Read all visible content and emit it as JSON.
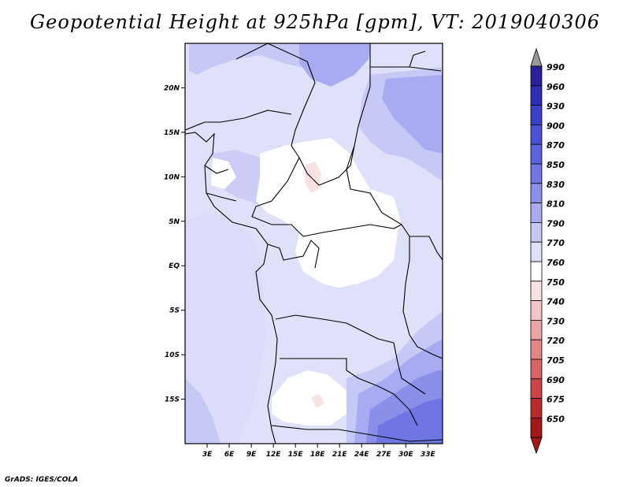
{
  "title": "Geopotential Height at 925hPa [gpm], VT: 2019040306",
  "credit": "GrADS: IGES/COLA",
  "map": {
    "lon_range": [
      0,
      35
    ],
    "lat_range": [
      -20,
      25
    ],
    "x_ticks": [
      "3E",
      "6E",
      "9E",
      "12E",
      "15E",
      "18E",
      "21E",
      "24E",
      "27E",
      "30E",
      "33E"
    ],
    "x_tick_lons": [
      3,
      6,
      9,
      12,
      15,
      18,
      21,
      24,
      27,
      30,
      33
    ],
    "y_ticks": [
      "20N",
      "15N",
      "10N",
      "5N",
      "EQ",
      "5S",
      "10S",
      "15S"
    ],
    "y_tick_lats": [
      20,
      15,
      10,
      5,
      0,
      -5,
      -10,
      -15
    ]
  },
  "colorbar": {
    "levels": [
      "990",
      "960",
      "930",
      "900",
      "870",
      "850",
      "830",
      "810",
      "790",
      "770",
      "760",
      "750",
      "740",
      "730",
      "720",
      "705",
      "690",
      "675",
      "650"
    ],
    "colors": [
      "#2a1f9c",
      "#2e2fb8",
      "#3a3fcc",
      "#4a50d8",
      "#5b63de",
      "#6f76e3",
      "#8a8fea",
      "#a8abf1",
      "#c6c8f6",
      "#dfe0fa",
      "#ffffff",
      "#fbe2e2",
      "#f5c4c4",
      "#eca5a5",
      "#e38585",
      "#d86464",
      "#cc4444",
      "#bb2a2a",
      "#a51818"
    ],
    "top_arrow_color": "#9a9a9a",
    "bottom_arrow_color": "#a51818"
  }
}
